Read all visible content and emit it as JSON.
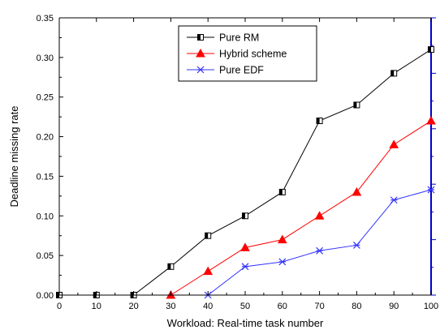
{
  "chart_data": {
    "type": "line",
    "title": "",
    "xlabel": "Workload: Real-time task number",
    "ylabel": "Deadline missing rate",
    "x": [
      0,
      10,
      20,
      30,
      40,
      50,
      60,
      70,
      80,
      90,
      100
    ],
    "xlim": [
      0,
      100
    ],
    "ylim": [
      0,
      0.35
    ],
    "xticks": [
      "0",
      "10",
      "20",
      "30",
      "40",
      "50",
      "60",
      "70",
      "80",
      "90",
      "100"
    ],
    "yticks": [
      "0.00",
      "0.05",
      "0.10",
      "0.15",
      "0.20",
      "0.25",
      "0.30",
      "0.35"
    ],
    "grid": false,
    "legend_position": "top-center",
    "series": [
      {
        "name": "Pure RM",
        "color": "#000000",
        "marker": "half-filled-square",
        "x": [
          0,
          10,
          20,
          30,
          40,
          50,
          60,
          70,
          80,
          90,
          100
        ],
        "values": [
          0.0,
          0.0,
          0.0,
          0.036,
          0.075,
          0.1,
          0.13,
          0.22,
          0.24,
          0.28,
          0.31
        ]
      },
      {
        "name": "Hybrid scheme",
        "color": "#ff0000",
        "marker": "triangle",
        "x": [
          30,
          40,
          50,
          60,
          70,
          80,
          90,
          100
        ],
        "values": [
          0.0,
          0.03,
          0.06,
          0.07,
          0.1,
          0.13,
          0.19,
          0.22
        ]
      },
      {
        "name": "Pure EDF",
        "color": "#3333ff",
        "marker": "x-star",
        "x": [
          40,
          50,
          60,
          70,
          80,
          90,
          100
        ],
        "values": [
          0.0,
          0.036,
          0.042,
          0.056,
          0.063,
          0.12,
          0.133
        ]
      }
    ],
    "right_axis_color": "#0000cc"
  }
}
